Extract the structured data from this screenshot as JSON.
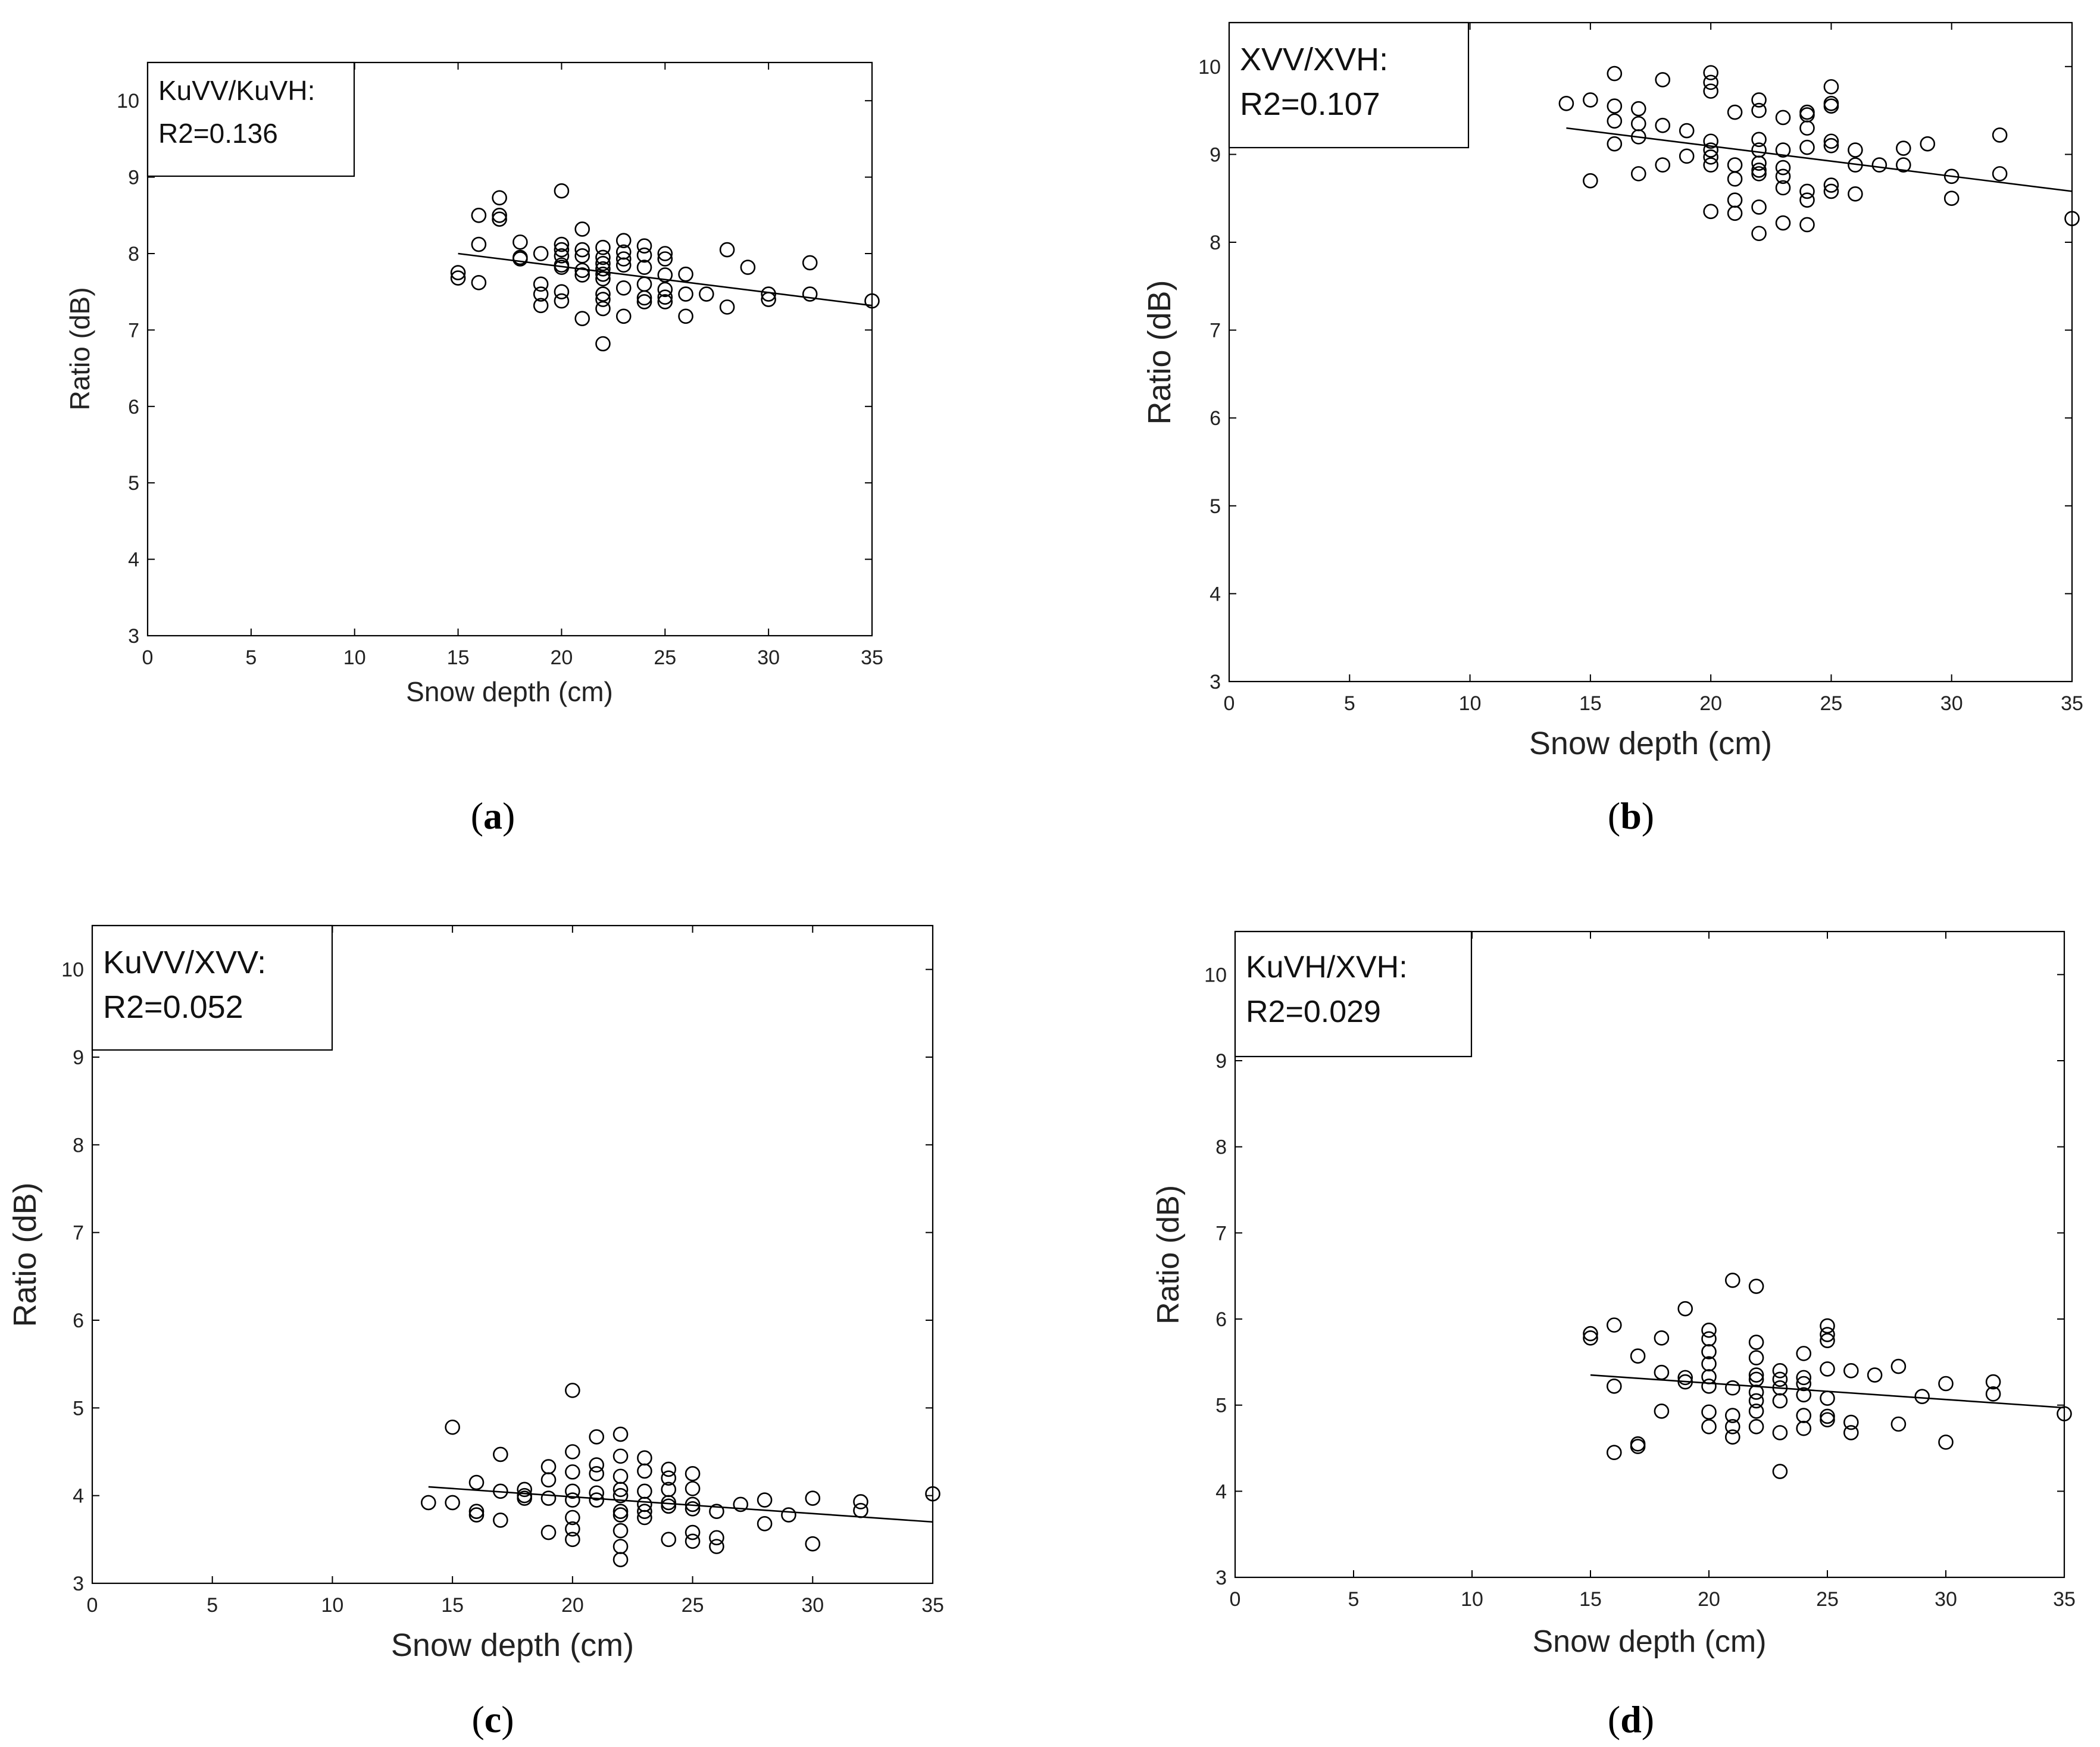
{
  "chart_data": [
    {
      "type": "scatter",
      "panel": "a",
      "caption_letter": "a",
      "annotation": [
        "KuVV/KuVH:",
        "R2=0.136"
      ],
      "xlabel": "Snow depth (cm)",
      "ylabel": "Ratio (dB)",
      "xlim": [
        0,
        35
      ],
      "ylim": [
        3,
        10.5
      ],
      "xticks": [
        0,
        5,
        10,
        15,
        20,
        25,
        30,
        35
      ],
      "yticks": [
        3,
        4,
        5,
        6,
        7,
        8,
        9,
        10
      ],
      "grid": false,
      "fit_line": {
        "x": [
          15,
          35
        ],
        "y": [
          8.0,
          7.32
        ]
      },
      "points": [
        [
          15,
          7.75
        ],
        [
          15,
          7.68
        ],
        [
          16,
          8.5
        ],
        [
          16,
          8.12
        ],
        [
          16,
          7.62
        ],
        [
          17,
          8.73
        ],
        [
          17,
          8.5
        ],
        [
          17,
          8.45
        ],
        [
          18,
          8.15
        ],
        [
          18,
          7.95
        ],
        [
          18,
          7.93
        ],
        [
          19,
          8.0
        ],
        [
          19,
          7.6
        ],
        [
          19,
          7.47
        ],
        [
          19,
          7.32
        ],
        [
          20,
          8.82
        ],
        [
          20,
          8.12
        ],
        [
          20,
          8.05
        ],
        [
          20,
          7.97
        ],
        [
          20,
          7.85
        ],
        [
          20,
          7.82
        ],
        [
          20,
          7.5
        ],
        [
          20,
          7.38
        ],
        [
          21,
          8.32
        ],
        [
          21,
          8.05
        ],
        [
          21,
          7.97
        ],
        [
          21,
          7.78
        ],
        [
          21,
          7.72
        ],
        [
          21,
          7.15
        ],
        [
          22,
          8.08
        ],
        [
          22,
          7.95
        ],
        [
          22,
          7.87
        ],
        [
          22,
          7.8
        ],
        [
          22,
          7.73
        ],
        [
          22,
          7.67
        ],
        [
          22,
          7.47
        ],
        [
          22,
          7.4
        ],
        [
          22,
          7.28
        ],
        [
          22,
          6.82
        ],
        [
          23,
          8.17
        ],
        [
          23,
          8.02
        ],
        [
          23,
          7.93
        ],
        [
          23,
          7.85
        ],
        [
          23,
          7.55
        ],
        [
          23,
          7.18
        ],
        [
          24,
          8.1
        ],
        [
          24,
          7.98
        ],
        [
          24,
          7.82
        ],
        [
          24,
          7.6
        ],
        [
          24,
          7.42
        ],
        [
          24,
          7.37
        ],
        [
          25,
          8.0
        ],
        [
          25,
          7.93
        ],
        [
          25,
          7.72
        ],
        [
          25,
          7.53
        ],
        [
          25,
          7.43
        ],
        [
          25,
          7.37
        ],
        [
          26,
          7.73
        ],
        [
          26,
          7.47
        ],
        [
          26,
          7.18
        ],
        [
          27,
          7.47
        ],
        [
          28,
          8.05
        ],
        [
          28,
          7.3
        ],
        [
          29,
          7.82
        ],
        [
          30,
          7.47
        ],
        [
          30,
          7.4
        ],
        [
          32,
          7.88
        ],
        [
          32,
          7.47
        ],
        [
          35,
          7.38
        ]
      ]
    },
    {
      "type": "scatter",
      "panel": "b",
      "caption_letter": "b",
      "annotation": [
        "XVV/XVH:",
        "R2=0.107"
      ],
      "xlabel": "Snow depth (cm)",
      "ylabel": "Ratio (dB)",
      "xlim": [
        0,
        35
      ],
      "ylim": [
        3,
        10.5
      ],
      "xticks": [
        0,
        5,
        10,
        15,
        20,
        25,
        30,
        35
      ],
      "yticks": [
        3,
        4,
        5,
        6,
        7,
        8,
        9,
        10
      ],
      "grid": false,
      "fit_line": {
        "x": [
          14,
          35
        ],
        "y": [
          9.3,
          8.58
        ]
      },
      "points": [
        [
          14,
          9.58
        ],
        [
          15,
          9.62
        ],
        [
          15,
          8.7
        ],
        [
          16,
          9.92
        ],
        [
          16,
          9.55
        ],
        [
          16,
          9.38
        ],
        [
          16,
          9.12
        ],
        [
          17,
          9.52
        ],
        [
          17,
          9.35
        ],
        [
          17,
          9.2
        ],
        [
          17,
          8.78
        ],
        [
          18,
          9.85
        ],
        [
          18,
          9.33
        ],
        [
          18,
          8.88
        ],
        [
          19,
          9.27
        ],
        [
          19,
          8.98
        ],
        [
          20,
          9.93
        ],
        [
          20,
          9.82
        ],
        [
          20,
          9.72
        ],
        [
          20,
          9.15
        ],
        [
          20,
          9.05
        ],
        [
          20,
          8.97
        ],
        [
          20,
          8.88
        ],
        [
          20,
          8.35
        ],
        [
          21,
          9.48
        ],
        [
          21,
          8.88
        ],
        [
          21,
          8.72
        ],
        [
          21,
          8.48
        ],
        [
          21,
          8.33
        ],
        [
          22,
          9.62
        ],
        [
          22,
          9.5
        ],
        [
          22,
          9.17
        ],
        [
          22,
          9.05
        ],
        [
          22,
          8.9
        ],
        [
          22,
          8.82
        ],
        [
          22,
          8.78
        ],
        [
          22,
          8.4
        ],
        [
          22,
          8.1
        ],
        [
          23,
          9.42
        ],
        [
          23,
          9.05
        ],
        [
          23,
          8.85
        ],
        [
          23,
          8.75
        ],
        [
          23,
          8.62
        ],
        [
          23,
          8.22
        ],
        [
          24,
          9.48
        ],
        [
          24,
          9.45
        ],
        [
          24,
          9.3
        ],
        [
          24,
          9.08
        ],
        [
          24,
          8.58
        ],
        [
          24,
          8.48
        ],
        [
          24,
          8.2
        ],
        [
          25,
          9.77
        ],
        [
          25,
          9.58
        ],
        [
          25,
          9.55
        ],
        [
          25,
          9.15
        ],
        [
          25,
          9.1
        ],
        [
          25,
          8.65
        ],
        [
          25,
          8.58
        ],
        [
          26,
          9.05
        ],
        [
          26,
          8.88
        ],
        [
          26,
          8.55
        ],
        [
          27,
          8.88
        ],
        [
          28,
          9.07
        ],
        [
          28,
          8.88
        ],
        [
          29,
          9.12
        ],
        [
          30,
          8.75
        ],
        [
          30,
          8.5
        ],
        [
          32,
          9.22
        ],
        [
          32,
          8.78
        ],
        [
          35,
          8.27
        ]
      ]
    },
    {
      "type": "scatter",
      "panel": "c",
      "caption_letter": "c",
      "annotation": [
        "KuVV/XVV:",
        "R2=0.052"
      ],
      "xlabel": "Snow depth (cm)",
      "ylabel": "Ratio (dB)",
      "xlim": [
        0,
        35
      ],
      "ylim": [
        3,
        10.5
      ],
      "xticks": [
        0,
        5,
        10,
        15,
        20,
        25,
        30,
        35
      ],
      "yticks": [
        3,
        4,
        5,
        6,
        7,
        8,
        9,
        10
      ],
      "grid": false,
      "fit_line": {
        "x": [
          14,
          35
        ],
        "y": [
          4.1,
          3.7
        ]
      },
      "points": [
        [
          14,
          3.92
        ],
        [
          15,
          4.78
        ],
        [
          15,
          3.92
        ],
        [
          16,
          4.15
        ],
        [
          16,
          3.82
        ],
        [
          16,
          3.78
        ],
        [
          17,
          4.47
        ],
        [
          17,
          4.05
        ],
        [
          17,
          3.72
        ],
        [
          18,
          4.07
        ],
        [
          18,
          4.0
        ],
        [
          18,
          3.97
        ],
        [
          19,
          4.33
        ],
        [
          19,
          4.18
        ],
        [
          19,
          3.97
        ],
        [
          19,
          3.58
        ],
        [
          20,
          5.2
        ],
        [
          20,
          4.5
        ],
        [
          20,
          4.27
        ],
        [
          20,
          4.05
        ],
        [
          20,
          3.95
        ],
        [
          20,
          3.75
        ],
        [
          20,
          3.62
        ],
        [
          20,
          3.5
        ],
        [
          21,
          4.67
        ],
        [
          21,
          4.35
        ],
        [
          21,
          4.25
        ],
        [
          21,
          4.03
        ],
        [
          21,
          3.95
        ],
        [
          22,
          4.7
        ],
        [
          22,
          4.45
        ],
        [
          22,
          4.22
        ],
        [
          22,
          4.07
        ],
        [
          22,
          4.0
        ],
        [
          22,
          3.82
        ],
        [
          22,
          3.78
        ],
        [
          22,
          3.6
        ],
        [
          22,
          3.42
        ],
        [
          22,
          3.27
        ],
        [
          23,
          4.43
        ],
        [
          23,
          4.28
        ],
        [
          23,
          4.05
        ],
        [
          23,
          3.9
        ],
        [
          23,
          3.82
        ],
        [
          23,
          3.75
        ],
        [
          24,
          4.3
        ],
        [
          24,
          4.2
        ],
        [
          24,
          4.07
        ],
        [
          24,
          3.92
        ],
        [
          24,
          3.88
        ],
        [
          24,
          3.5
        ],
        [
          25,
          4.25
        ],
        [
          25,
          4.08
        ],
        [
          25,
          3.9
        ],
        [
          25,
          3.85
        ],
        [
          25,
          3.58
        ],
        [
          25,
          3.48
        ],
        [
          26,
          3.82
        ],
        [
          26,
          3.52
        ],
        [
          26,
          3.42
        ],
        [
          27,
          3.9
        ],
        [
          28,
          3.95
        ],
        [
          28,
          3.68
        ],
        [
          29,
          3.78
        ],
        [
          30,
          3.97
        ],
        [
          30,
          3.45
        ],
        [
          32,
          3.93
        ],
        [
          32,
          3.83
        ],
        [
          35,
          4.02
        ]
      ]
    },
    {
      "type": "scatter",
      "panel": "d",
      "caption_letter": "d",
      "annotation": [
        "KuVH/XVH:",
        "R2=0.029"
      ],
      "xlabel": "Snow depth (cm)",
      "ylabel": "Ratio (dB)",
      "xlim": [
        0,
        35
      ],
      "ylim": [
        3,
        10.5
      ],
      "xticks": [
        0,
        5,
        10,
        15,
        20,
        25,
        30,
        35
      ],
      "yticks": [
        3,
        4,
        5,
        6,
        7,
        8,
        9,
        10
      ],
      "grid": false,
      "fit_line": {
        "x": [
          15,
          35
        ],
        "y": [
          5.35,
          4.97
        ]
      },
      "points": [
        [
          15,
          5.83
        ],
        [
          15,
          5.78
        ],
        [
          16,
          5.93
        ],
        [
          16,
          5.22
        ],
        [
          16,
          4.45
        ],
        [
          17,
          5.57
        ],
        [
          17,
          4.55
        ],
        [
          17,
          4.52
        ],
        [
          18,
          5.78
        ],
        [
          18,
          5.38
        ],
        [
          18,
          4.93
        ],
        [
          19,
          6.12
        ],
        [
          19,
          5.32
        ],
        [
          19,
          5.27
        ],
        [
          20,
          5.87
        ],
        [
          20,
          5.77
        ],
        [
          20,
          5.62
        ],
        [
          20,
          5.48
        ],
        [
          20,
          5.33
        ],
        [
          20,
          5.22
        ],
        [
          20,
          4.92
        ],
        [
          20,
          4.75
        ],
        [
          21,
          6.45
        ],
        [
          21,
          5.2
        ],
        [
          21,
          4.88
        ],
        [
          21,
          4.75
        ],
        [
          21,
          4.63
        ],
        [
          22,
          6.38
        ],
        [
          22,
          5.73
        ],
        [
          22,
          5.55
        ],
        [
          22,
          5.35
        ],
        [
          22,
          5.3
        ],
        [
          22,
          5.15
        ],
        [
          22,
          5.05
        ],
        [
          22,
          4.93
        ],
        [
          22,
          4.75
        ],
        [
          23,
          5.4
        ],
        [
          23,
          5.3
        ],
        [
          23,
          5.2
        ],
        [
          23,
          5.05
        ],
        [
          23,
          4.68
        ],
        [
          23,
          4.23
        ],
        [
          24,
          5.6
        ],
        [
          24,
          5.32
        ],
        [
          24,
          5.25
        ],
        [
          24,
          5.12
        ],
        [
          24,
          4.88
        ],
        [
          24,
          4.73
        ],
        [
          25,
          5.92
        ],
        [
          25,
          5.82
        ],
        [
          25,
          5.75
        ],
        [
          25,
          5.42
        ],
        [
          25,
          5.08
        ],
        [
          25,
          4.87
        ],
        [
          25,
          4.83
        ],
        [
          26,
          5.4
        ],
        [
          26,
          4.8
        ],
        [
          26,
          4.68
        ],
        [
          27,
          5.35
        ],
        [
          28,
          5.45
        ],
        [
          28,
          4.78
        ],
        [
          29,
          5.1
        ],
        [
          30,
          5.25
        ],
        [
          30,
          4.57
        ],
        [
          32,
          5.27
        ],
        [
          32,
          5.13
        ],
        [
          35,
          4.9
        ]
      ]
    }
  ]
}
